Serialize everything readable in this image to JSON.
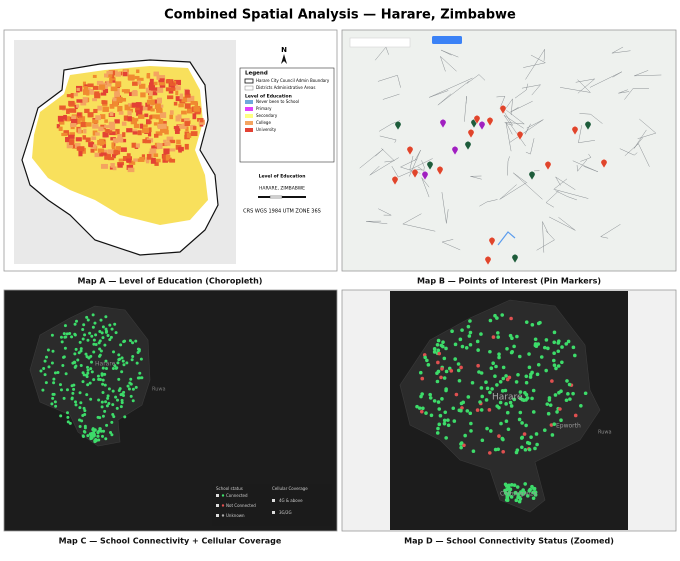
{
  "title": "Combined Spatial Analysis — Harare, Zimbabwe",
  "map_a": {
    "caption": "Map A — Level of Education (Choropleth)",
    "north": "N",
    "legend_title": "Legend",
    "legend_items": [
      "Harare City Council Admin Boundary",
      "Districts Administrative Areas"
    ],
    "education_title": "Level of Education",
    "education_items": [
      "Never been to School",
      "Primary",
      "Secondary",
      "College",
      "University"
    ],
    "info_title": "Level of Education",
    "place": "HARARE, ZIMBABWE",
    "crs": "CRS WGS 1984 UTM ZONE 36S"
  },
  "map_b": {
    "caption": "Map B — Points of Interest (Pin Markers)"
  },
  "map_c": {
    "caption": "Map C — School Connectivity + Cellular Coverage",
    "labels": [
      "Harare",
      "Ruwa"
    ],
    "school_title": "School status",
    "school_items": [
      "Connected",
      "Not Connected",
      "Unknown"
    ],
    "coverage_title": "Cellular Coverage",
    "coverage_items": [
      "4G & above",
      "3G/2G"
    ]
  },
  "map_d": {
    "caption": "Map D — School Connectivity Status (Zoomed)",
    "labels": [
      "Harare",
      "Epworth",
      "Chitungwiza",
      "Ruwa"
    ]
  }
}
